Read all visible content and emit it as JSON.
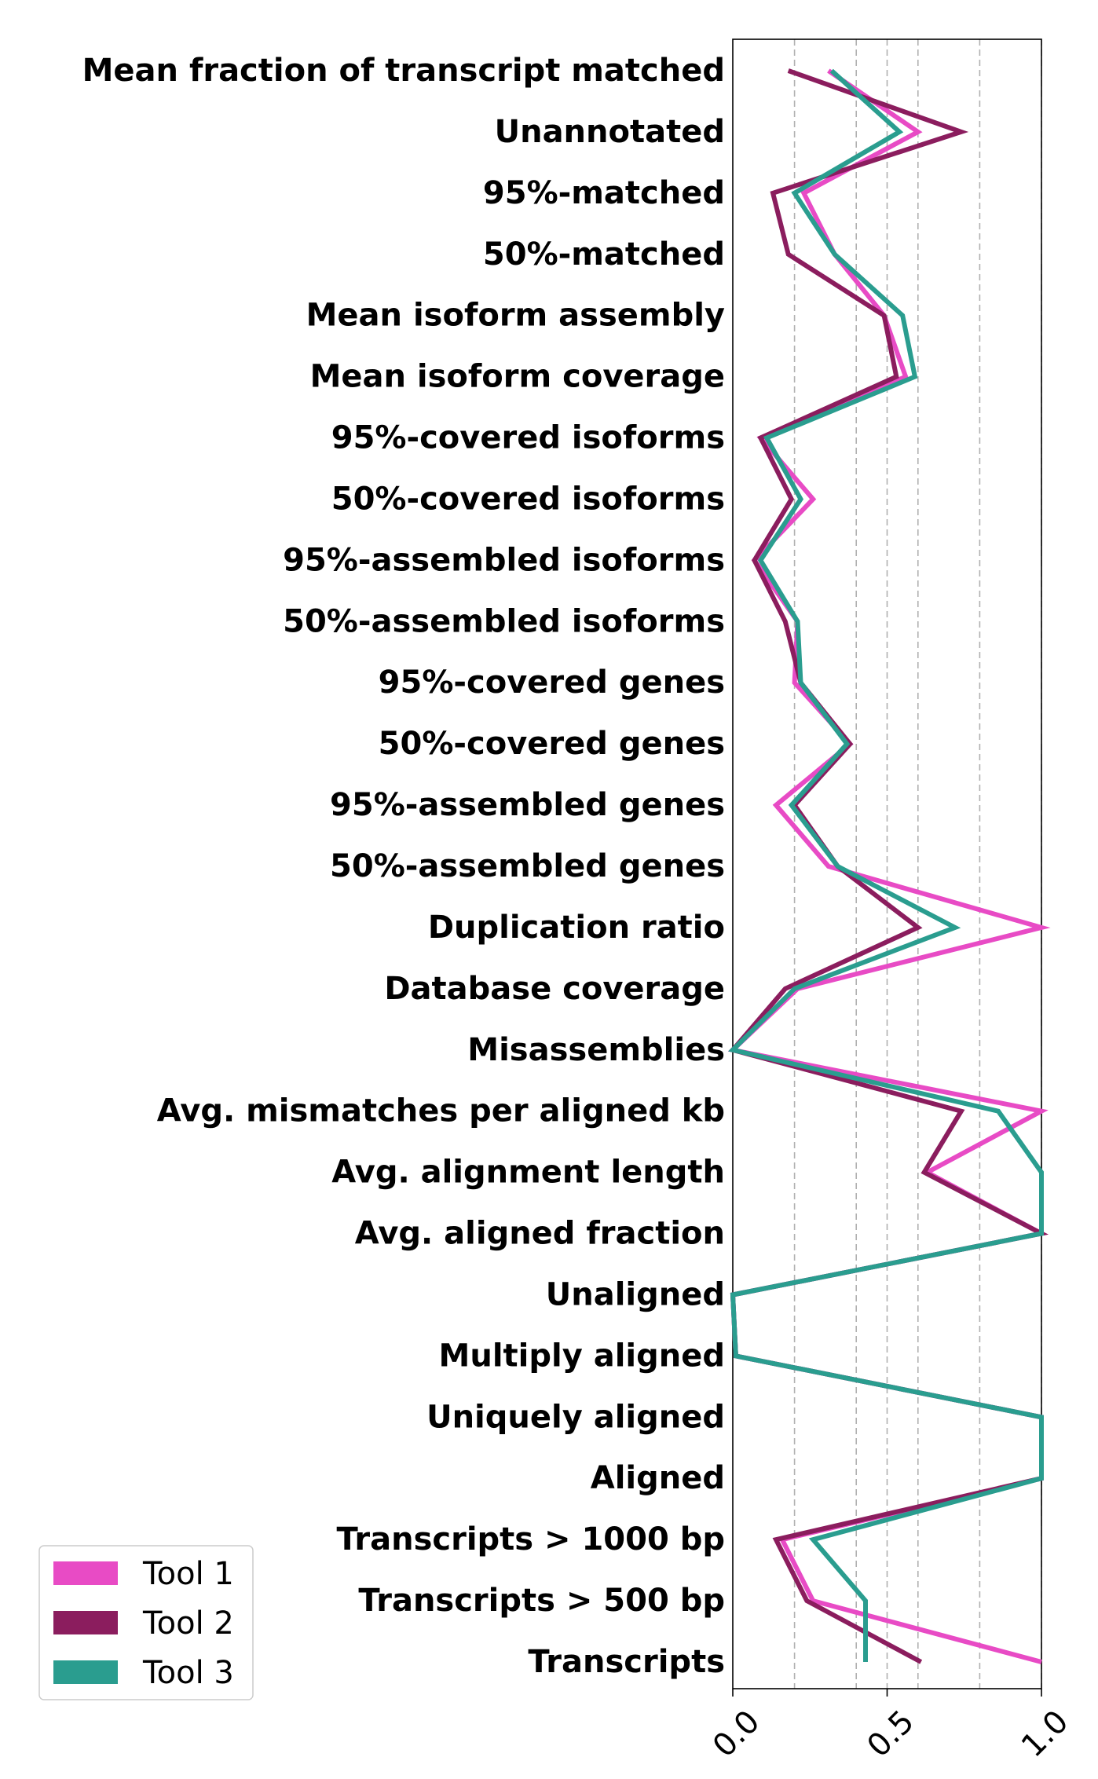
{
  "chart_data": {
    "type": "line",
    "orientation": "horizontal-profile",
    "title": "",
    "xlabel": "",
    "ylabel": "",
    "xlim": [
      0,
      1
    ],
    "xticks": [
      0.0,
      0.5,
      1.0
    ],
    "xtick_labels": [
      "0.0",
      "0.5",
      "1.0"
    ],
    "grid": {
      "vertical_dashed_at": [
        0.2,
        0.4,
        0.5,
        0.6,
        0.8,
        1.0
      ]
    },
    "legend_placement": "lower-left",
    "categories": [
      "Mean fraction of transcript matched",
      "Unannotated",
      "95%-matched",
      "50%-matched",
      "Mean isoform assembly",
      "Mean isoform coverage",
      "95%-covered isoforms",
      "50%-covered isoforms",
      "95%-assembled isoforms",
      "50%-assembled isoforms",
      "95%-covered genes",
      "50%-covered genes",
      "95%-assembled genes",
      "50%-assembled genes",
      "Duplication ratio",
      "Database coverage",
      "Misassemblies",
      "Avg. mismatches per aligned kb",
      "Avg. alignment length",
      "Avg. aligned fraction",
      "Unaligned",
      "Multiply aligned",
      "Uniquely aligned",
      "Aligned",
      "Transcripts > 1000 bp",
      "Transcripts > 500 bp",
      "Transcripts"
    ],
    "series": [
      {
        "name": "Tool 1",
        "color": "#e84bc5",
        "values": [
          0.31,
          0.6,
          0.23,
          0.33,
          0.49,
          0.56,
          0.09,
          0.26,
          0.07,
          0.21,
          0.2,
          0.38,
          0.14,
          0.31,
          1.0,
          0.21,
          0.0,
          1.0,
          0.63,
          1.0,
          0.0,
          0.01,
          1.0,
          1.0,
          0.16,
          0.26,
          1.0
        ]
      },
      {
        "name": "Tool 2",
        "color": "#8b1d5e",
        "values": [
          0.18,
          0.74,
          0.13,
          0.18,
          0.49,
          0.53,
          0.09,
          0.19,
          0.07,
          0.17,
          0.22,
          0.38,
          0.2,
          0.34,
          0.6,
          0.17,
          0.0,
          0.74,
          0.62,
          1.0,
          0.0,
          0.01,
          1.0,
          1.0,
          0.14,
          0.24,
          0.61
        ]
      },
      {
        "name": "Tool 3",
        "color": "#2a9d8f",
        "values": [
          0.32,
          0.54,
          0.2,
          0.33,
          0.55,
          0.59,
          0.11,
          0.22,
          0.09,
          0.21,
          0.22,
          0.37,
          0.19,
          0.34,
          0.72,
          0.2,
          0.0,
          0.86,
          1.0,
          1.0,
          0.0,
          0.01,
          1.0,
          1.0,
          0.26,
          0.43,
          0.43
        ]
      }
    ]
  }
}
